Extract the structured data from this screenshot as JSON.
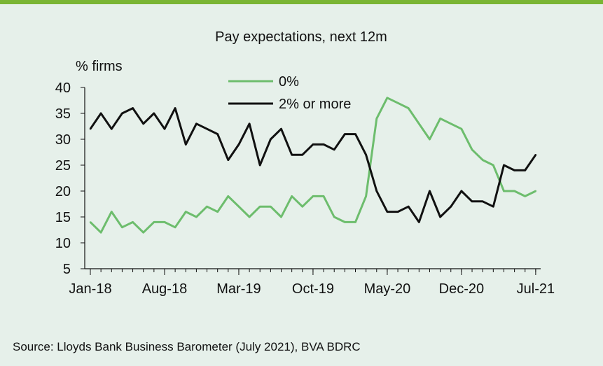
{
  "colors": {
    "background": "#e6f0ea",
    "accent_bar": "#7ab534",
    "series_zero": "#6dbd6d",
    "series_two_plus": "#111111"
  },
  "source": "Source: Lloyds Bank Business Barometer (July 2021), BVA BDRC",
  "chart_data": {
    "type": "line",
    "title": "Pay expectations, next 12m",
    "ylabel": "% firms",
    "xlabel": "",
    "ylim": [
      5,
      40
    ],
    "yticks": [
      5,
      10,
      15,
      20,
      25,
      30,
      35,
      40
    ],
    "x_tick_labels": [
      {
        "index": 0,
        "label": "Jan-18"
      },
      {
        "index": 7,
        "label": "Aug-18"
      },
      {
        "index": 14,
        "label": "Mar-19"
      },
      {
        "index": 21,
        "label": "Oct-19"
      },
      {
        "index": 28,
        "label": "May-20"
      },
      {
        "index": 35,
        "label": "Dec-20"
      },
      {
        "index": 42,
        "label": "Jul-21"
      }
    ],
    "n_points": 43,
    "legend_position": "top-center",
    "series": [
      {
        "name": "0%",
        "color": "#6dbd6d",
        "values": [
          14,
          12,
          16,
          13,
          14,
          12,
          14,
          14,
          13,
          16,
          15,
          17,
          16,
          19,
          17,
          15,
          17,
          17,
          15,
          19,
          17,
          19,
          19,
          15,
          14,
          14,
          19,
          34,
          38,
          37,
          36,
          33,
          30,
          34,
          33,
          32,
          28,
          26,
          25,
          20,
          20,
          19,
          20
        ]
      },
      {
        "name": "2% or more",
        "color": "#111111",
        "values": [
          32,
          35,
          32,
          35,
          36,
          33,
          35,
          32,
          36,
          29,
          33,
          32,
          31,
          26,
          29,
          33,
          25,
          30,
          32,
          27,
          27,
          29,
          29,
          28,
          31,
          31,
          27,
          20,
          16,
          16,
          17,
          14,
          20,
          15,
          17,
          20,
          18,
          18,
          17,
          25,
          24,
          24,
          27
        ]
      }
    ]
  }
}
